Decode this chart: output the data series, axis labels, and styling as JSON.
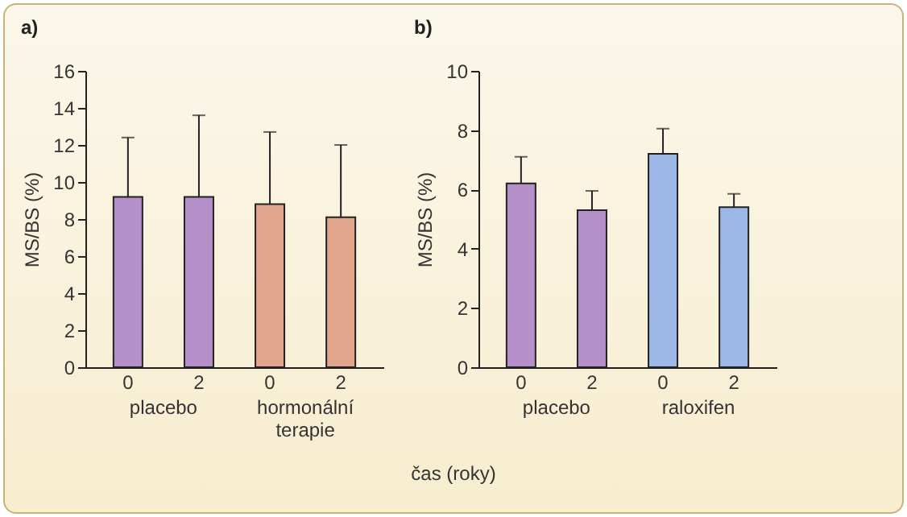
{
  "chart_data": [
    {
      "type": "bar",
      "title": "a)",
      "ylabel": "MS/BS (%)",
      "xlabel": "čas (roky)",
      "categories": [
        "0",
        "2",
        "0",
        "2"
      ],
      "values": [
        9.2,
        9.2,
        8.8,
        8.1
      ],
      "colors": [
        "#b48fc8",
        "#b48fc8",
        "#e0a58a",
        "#e0a58a"
      ],
      "errors": [
        [
          9.2,
          12.4
        ],
        [
          9.2,
          13.6
        ],
        [
          8.8,
          12.7
        ],
        [
          8.1,
          12.0
        ]
      ],
      "ylim": [
        0,
        16
      ],
      "yticks": [
        0,
        2,
        4,
        6,
        8,
        10,
        12,
        14,
        16
      ],
      "annotations": [
        "placebo",
        "hormonální terapie"
      ]
    },
    {
      "type": "bar",
      "title": "b)",
      "ylabel": "MS/BS (%)",
      "categories": [
        "0",
        "2",
        "0",
        "2"
      ],
      "values": [
        6.2,
        5.3,
        7.2,
        5.4
      ],
      "colors": [
        "#b48fc8",
        "#b48fc8",
        "#9db8e6",
        "#9db8e6"
      ],
      "errors": [
        [
          6.2,
          7.1
        ],
        [
          5.3,
          5.95
        ],
        [
          7.2,
          8.05
        ],
        [
          5.4,
          5.85
        ]
      ],
      "ylim": [
        0,
        10
      ],
      "yticks": [
        0,
        2,
        4,
        6,
        8,
        10
      ],
      "annotations": [
        "placebo",
        "raloxifen"
      ]
    }
  ]
}
